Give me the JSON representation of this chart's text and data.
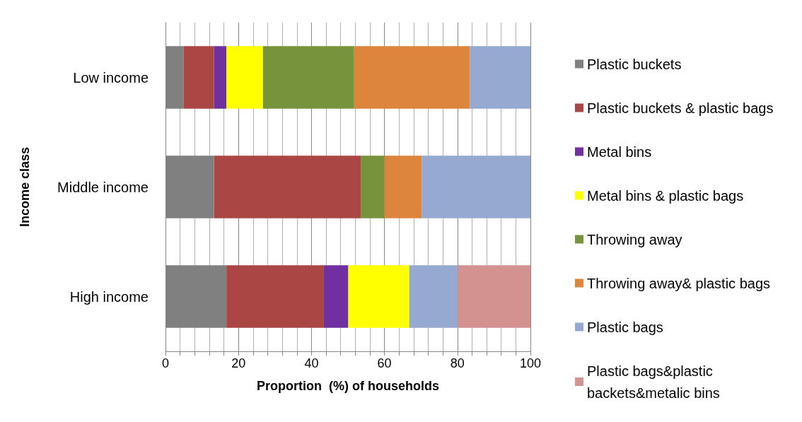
{
  "chart_data": {
    "type": "bar",
    "orientation": "horizontal",
    "stacked": true,
    "xlabel": "Proportion  (%) of households",
    "ylabel": "Income class",
    "categories": [
      "Low income",
      "Middle income",
      "High income"
    ],
    "series": [
      {
        "name": "Plastic buckets",
        "color": "#808080",
        "values": [
          5,
          13.3,
          16.7
        ]
      },
      {
        "name": "Plastic buckets & plastic bags",
        "color": "#aa4643",
        "values": [
          8.3,
          40.2,
          26.7
        ]
      },
      {
        "name": "Metal bins",
        "color": "#7030a0",
        "values": [
          3.4,
          0,
          6.7
        ]
      },
      {
        "name": "Metal bins & plastic bags",
        "color": "#ffff00",
        "values": [
          10,
          0,
          16.7
        ]
      },
      {
        "name": "Throwing away",
        "color": "#77933c",
        "values": [
          25,
          6.5,
          0
        ]
      },
      {
        "name": "Throwing away& plastic bags",
        "color": "#dd843d",
        "values": [
          31.7,
          10.2,
          0
        ]
      },
      {
        "name": "Plastic bags",
        "color": "#95a9d1",
        "values": [
          16.6,
          29.8,
          13.3
        ]
      },
      {
        "name": "Plastic bags&plastic backets&metalic bins",
        "color": "#d39190",
        "values": [
          0,
          0,
          19.9
        ]
      }
    ],
    "xlim": [
      0,
      100
    ],
    "xticks": [
      0,
      20,
      40,
      60,
      80,
      100
    ],
    "grid": "x",
    "legend": "right"
  }
}
